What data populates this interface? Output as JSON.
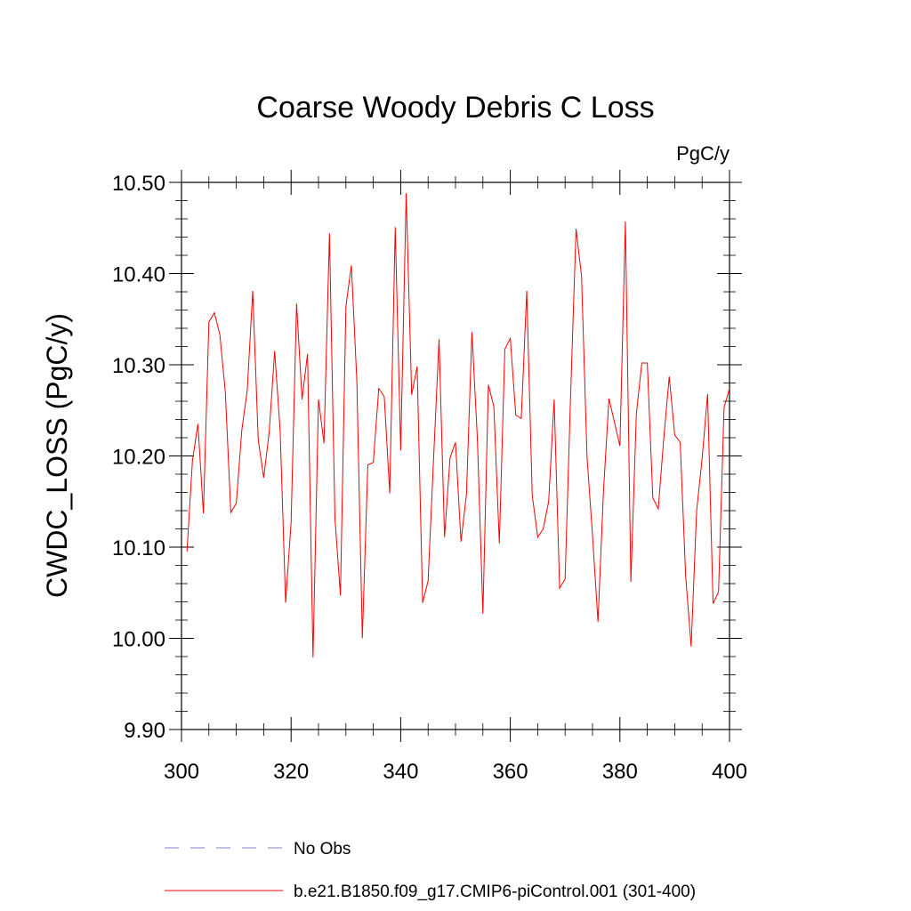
{
  "chart_data": {
    "type": "line",
    "title": "Coarse Woody Debris C Loss",
    "units_label": "PgC/y",
    "ylabel": "CWDC_LOSS  (PgC/y)",
    "xlabel": "",
    "xlim": [
      300,
      400
    ],
    "ylim": [
      9.9,
      10.5
    ],
    "xticks": [
      "300",
      "320",
      "340",
      "360",
      "380",
      "400"
    ],
    "yticks": [
      "9.90",
      "10.00",
      "10.10",
      "10.20",
      "10.30",
      "10.40",
      "10.50"
    ],
    "xtick_values": [
      300,
      320,
      340,
      360,
      380,
      400
    ],
    "ytick_values": [
      9.9,
      10.0,
      10.1,
      10.2,
      10.3,
      10.4,
      10.5
    ],
    "x_start": 301,
    "series": [
      {
        "name": "b.e21.B1850.f09_g17.CMIP6-piControl.001 (301-400)",
        "color": "#ff0000",
        "values": [
          10.095,
          10.195,
          10.235,
          10.137,
          10.347,
          10.357,
          10.333,
          10.27,
          10.138,
          10.148,
          10.228,
          10.272,
          10.381,
          10.218,
          10.176,
          10.226,
          10.315,
          10.228,
          10.039,
          10.127,
          10.367,
          10.262,
          10.312,
          9.979,
          10.262,
          10.214,
          10.444,
          10.132,
          10.047,
          10.364,
          10.409,
          10.282,
          10.0,
          10.19,
          10.193,
          10.274,
          10.265,
          10.159,
          10.451,
          10.206,
          10.488,
          10.267,
          10.298,
          10.039,
          10.063,
          10.197,
          10.328,
          10.111,
          10.198,
          10.215,
          10.106,
          10.158,
          10.336,
          10.218,
          10.027,
          10.278,
          10.254,
          10.104,
          10.317,
          10.329,
          10.245,
          10.241,
          10.381,
          10.157,
          10.111,
          10.12,
          10.15,
          10.262,
          10.055,
          10.065,
          10.266,
          10.449,
          10.397,
          10.199,
          10.113,
          10.018,
          10.161,
          10.263,
          10.237,
          10.211,
          10.457,
          10.062,
          10.246,
          10.302,
          10.302,
          10.154,
          10.142,
          10.219,
          10.287,
          10.223,
          10.215,
          10.068,
          9.991,
          10.14,
          10.197,
          10.268,
          10.038,
          10.051,
          10.253,
          10.274
        ]
      }
    ]
  },
  "legend": {
    "entries": [
      {
        "label": "No Obs",
        "color": "#7f7fcc",
        "style": "dashed"
      },
      {
        "label": "b.e21.B1850.f09_g17.CMIP6-piControl.001 (301-400)",
        "color": "#ff0000",
        "style": "solid"
      }
    ]
  }
}
